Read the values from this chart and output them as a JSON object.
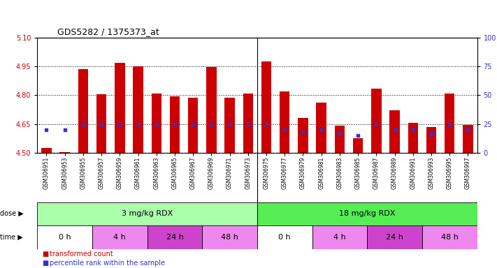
{
  "title": "GDS5282 / 1375373_at",
  "samples": [
    "GSM306951",
    "GSM306953",
    "GSM306955",
    "GSM306957",
    "GSM306959",
    "GSM306961",
    "GSM306963",
    "GSM306965",
    "GSM306967",
    "GSM306969",
    "GSM306971",
    "GSM306973",
    "GSM306975",
    "GSM306977",
    "GSM306979",
    "GSM306981",
    "GSM306983",
    "GSM306985",
    "GSM306987",
    "GSM306989",
    "GSM306991",
    "GSM306993",
    "GSM306995",
    "GSM306997"
  ],
  "transformed_count": [
    4.525,
    4.505,
    4.935,
    4.805,
    4.97,
    4.95,
    4.81,
    4.795,
    4.785,
    4.945,
    4.785,
    4.81,
    4.975,
    4.82,
    4.68,
    4.76,
    4.64,
    4.575,
    4.835,
    4.72,
    4.655,
    4.635,
    4.81,
    4.645
  ],
  "percentile_rank": [
    20,
    20,
    25,
    25,
    25,
    25,
    25,
    25,
    25,
    25,
    25,
    25,
    25,
    20,
    18,
    20,
    17,
    15,
    25,
    20,
    20,
    17,
    25,
    20
  ],
  "y_min": 4.5,
  "y_max": 5.1,
  "y_ticks": [
    4.5,
    4.65,
    4.8,
    4.95,
    5.1
  ],
  "y_right_ticks": [
    0,
    25,
    50,
    75,
    100
  ],
  "bar_color": "#cc0000",
  "blue_color": "#3333cc",
  "dose_groups": [
    {
      "label": "3 mg/kg RDX",
      "start": 0,
      "end": 12,
      "color": "#aaffaa"
    },
    {
      "label": "18 mg/kg RDX",
      "start": 12,
      "end": 24,
      "color": "#55ee55"
    }
  ],
  "time_groups": [
    {
      "label": "0 h",
      "start": 0,
      "end": 3,
      "color": "#ffffff"
    },
    {
      "label": "4 h",
      "start": 3,
      "end": 6,
      "color": "#ee88ee"
    },
    {
      "label": "24 h",
      "start": 6,
      "end": 9,
      "color": "#cc44cc"
    },
    {
      "label": "48 h",
      "start": 9,
      "end": 12,
      "color": "#ee88ee"
    },
    {
      "label": "0 h",
      "start": 12,
      "end": 15,
      "color": "#ffffff"
    },
    {
      "label": "4 h",
      "start": 15,
      "end": 18,
      "color": "#ee88ee"
    },
    {
      "label": "24 h",
      "start": 18,
      "end": 21,
      "color": "#cc44cc"
    },
    {
      "label": "48 h",
      "start": 21,
      "end": 24,
      "color": "#ee88ee"
    }
  ],
  "legend": [
    {
      "label": "transformed count",
      "color": "#cc0000"
    },
    {
      "label": "percentile rank within the sample",
      "color": "#3333cc"
    }
  ],
  "axis_label_color_left": "#cc0000",
  "axis_label_color_right": "#3333cc",
  "bar_width": 0.55,
  "baseline": 4.5,
  "xticklabel_bg": "#d8d8d8"
}
